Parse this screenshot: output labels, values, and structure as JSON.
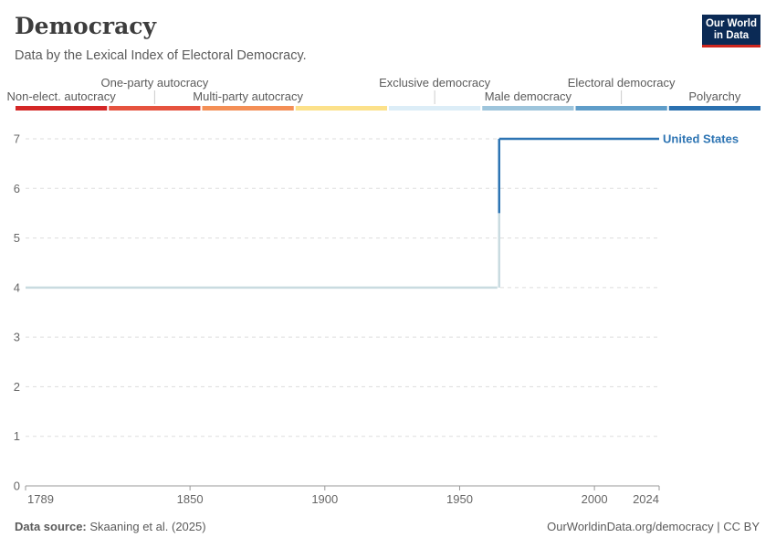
{
  "header": {
    "title": "Democracy",
    "subtitle": "Data by the Lexical Index of Electoral Democracy."
  },
  "logo": {
    "line1": "Our World",
    "line2": "in Data"
  },
  "footer": {
    "source_label": "Data source:",
    "source_text": "Skaaning et al. (2025)",
    "credit": "OurWorldinData.org/democracy | CC BY"
  },
  "legend_scale": [
    {
      "label": "Non-elect. autocracy",
      "color": "#d42726",
      "row": "lower"
    },
    {
      "label": "One-party autocracy",
      "color": "#e6533f",
      "row": "upper"
    },
    {
      "label": "Multi-party autocracy",
      "color": "#f48f56",
      "row": "lower"
    },
    {
      "label": "",
      "color": "#fce18a",
      "row": "none"
    },
    {
      "label": "Exclusive democracy",
      "color": "#dcedf7",
      "row": "upper"
    },
    {
      "label": "Male democracy",
      "color": "#9ec5dc",
      "row": "lower"
    },
    {
      "label": "Electoral democracy",
      "color": "#5f9dc9",
      "row": "upper"
    },
    {
      "label": "Polyarchy",
      "color": "#2b71b0",
      "row": "lower"
    }
  ],
  "chart_data": {
    "type": "line",
    "title": "Democracy",
    "subtitle": "Data by the Lexical Index of Electoral Democracy.",
    "xlabel": "",
    "ylabel": "",
    "xlim": [
      1789,
      2024
    ],
    "ylim": [
      0,
      7
    ],
    "x_ticks": [
      1789,
      1850,
      1900,
      1950,
      2000,
      2024
    ],
    "y_ticks": [
      0,
      1,
      2,
      3,
      4,
      5,
      6,
      7
    ],
    "grid": "horizontal dashed",
    "series": [
      {
        "name": "United States",
        "color": "#2d74b3",
        "points": [
          [
            1789,
            4
          ],
          [
            1964,
            4
          ],
          [
            1965,
            7
          ],
          [
            2024,
            7
          ]
        ]
      }
    ]
  }
}
